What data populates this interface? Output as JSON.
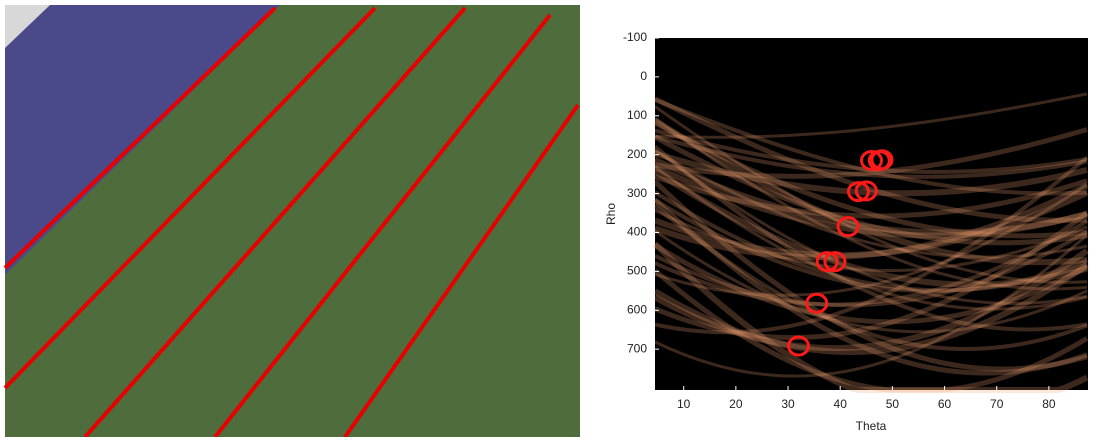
{
  "chart_data": {
    "type": "hough",
    "xlabel": "Theta",
    "ylabel": "Rho",
    "xlim": [
      4.5,
      87.5
    ],
    "xticks": [
      10,
      20,
      30,
      40,
      50,
      60,
      70,
      80
    ],
    "ylim": [
      805,
      -100
    ],
    "yticks": [
      -100,
      0,
      100,
      200,
      300,
      400,
      500,
      600,
      700
    ],
    "peaks": {
      "color": "#ff1a1a",
      "x": [
        46,
        47.5,
        48,
        43.5,
        45,
        41.5,
        37.5,
        39,
        35.5,
        32
      ],
      "y": [
        215,
        215,
        213,
        295,
        293,
        385,
        475,
        475,
        582,
        692
      ]
    }
  }
}
